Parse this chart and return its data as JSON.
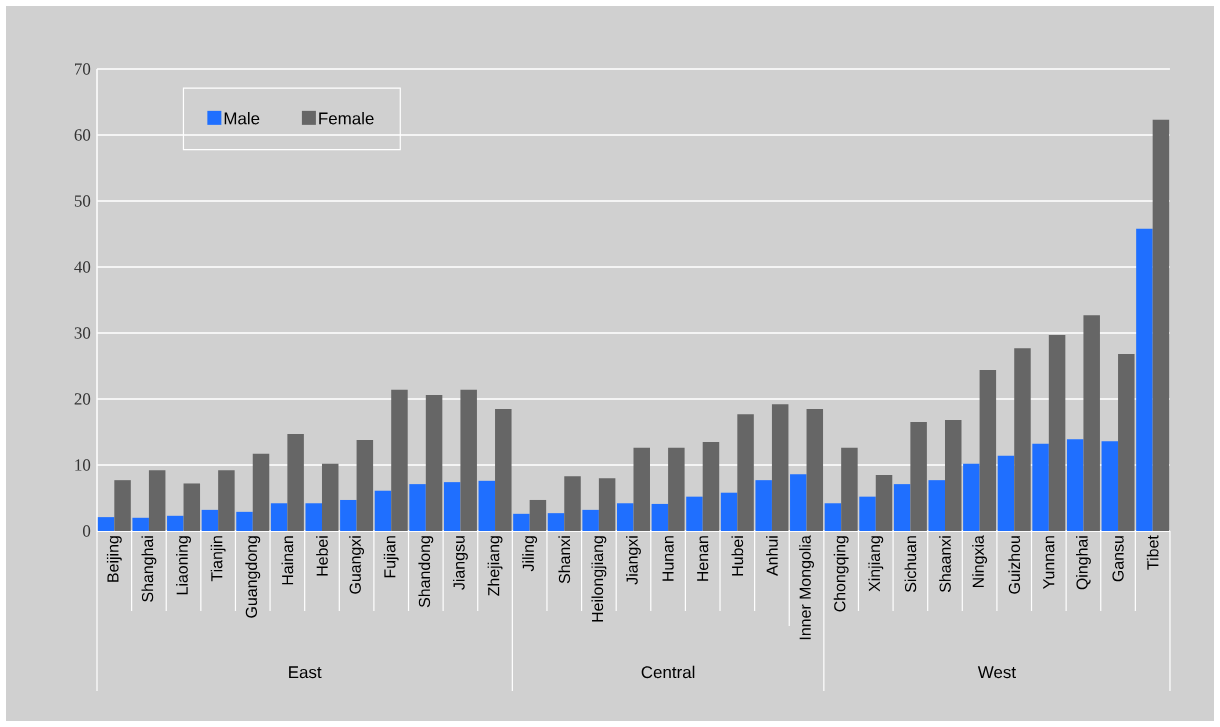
{
  "chart_data": {
    "type": "bar",
    "categories": [
      "Beijing",
      "Shanghai",
      "Liaoning",
      "Tianjin",
      "Guangdong",
      "Hainan",
      "Hebei",
      "Guangxi",
      "Fujian",
      "Shandong",
      "Jiangsu",
      "Zhejiang",
      "Jiling",
      "Shanxi",
      "Heilongjiang",
      "Jiangxi",
      "Hunan",
      "Henan",
      "Hubei",
      "Anhui",
      "Inner Mongolia",
      "Chongqing",
      "Xinjiang",
      "Sichuan",
      "Shaanxi",
      "Ningxia",
      "Guizhou",
      "Yunnan",
      "Qinghai",
      "Gansu",
      "Tibet"
    ],
    "series": [
      {
        "name": "Male",
        "color": "#1f6fff",
        "values": [
          2.1,
          2.0,
          2.3,
          3.2,
          2.9,
          4.2,
          4.2,
          4.7,
          6.1,
          7.1,
          7.4,
          7.6,
          2.6,
          2.7,
          3.2,
          4.2,
          4.1,
          5.2,
          5.8,
          7.7,
          8.6,
          4.2,
          5.2,
          7.1,
          7.7,
          10.2,
          11.4,
          13.2,
          13.9,
          13.6,
          45.8
        ]
      },
      {
        "name": "Female",
        "color": "#666666",
        "values": [
          7.7,
          9.2,
          7.2,
          9.2,
          11.7,
          14.7,
          10.2,
          13.8,
          21.4,
          20.6,
          21.4,
          18.5,
          4.7,
          8.3,
          8.0,
          12.6,
          12.6,
          13.5,
          17.7,
          19.2,
          18.5,
          12.6,
          8.5,
          16.5,
          16.8,
          24.4,
          27.7,
          29.7,
          32.7,
          26.8,
          62.3
        ]
      }
    ],
    "ylim": [
      0,
      70
    ],
    "yticks": [
      0,
      10,
      20,
      30,
      40,
      50,
      60,
      70
    ],
    "grid": "y",
    "legend": "top left",
    "annotations": [
      "East",
      "Central",
      "West"
    ]
  }
}
